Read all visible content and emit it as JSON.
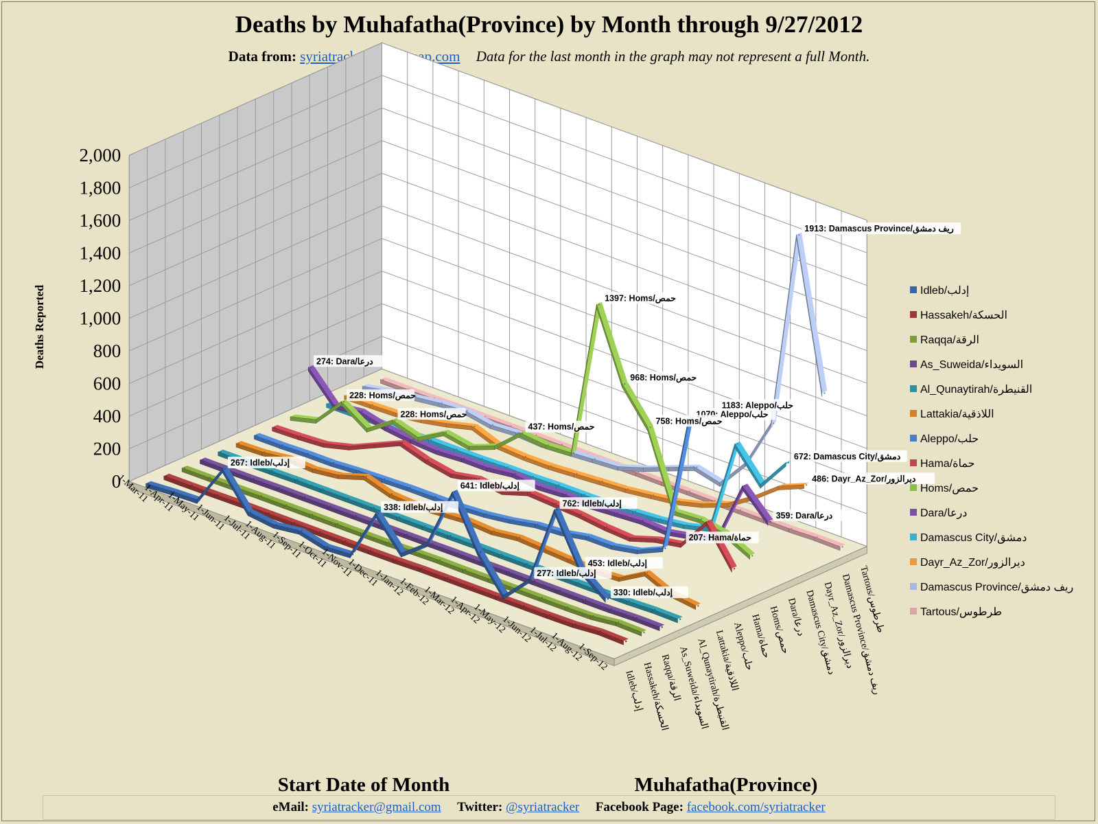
{
  "title": "Deaths by Muhafatha(Province) by Month through 9/27/2012",
  "subtitle": {
    "source_label": "Data from:",
    "source_link": "syriatracker.crowdmap.com",
    "note": "Data for the last month  in the graph may not represent a full Month."
  },
  "footer": {
    "email_label": "eMail:",
    "email": "syriatracker@gmail.com",
    "twitter_label": "Twitter:",
    "twitter": "@syriatracker",
    "facebook_label": "Facebook Page:",
    "facebook": "facebook.com/syriatracker"
  },
  "colors": {
    "background": "#e8e3c6",
    "wall_back": "#ffffff",
    "wall_side": "#c9c9c9",
    "floor": "#ece9cf",
    "link": "#1f5fbf"
  },
  "chart_data": {
    "type": "line",
    "style": "3d",
    "title": "Deaths by Muhafatha(Province) by Month through 9/27/2012",
    "ylabel": "Deaths Reported",
    "xlabel": "Start Date of Month",
    "zlabel": "Muhafatha(Province)",
    "ylim": [
      0,
      2000
    ],
    "yticks": [
      "0",
      "200",
      "400",
      "600",
      "800",
      "1,000",
      "1,200",
      "1,400",
      "1,600",
      "1,800",
      "2,000"
    ],
    "grid": true,
    "legend_position": "right",
    "categories": [
      "1-Mar-11",
      "1-Apr-11",
      "1-May-11",
      "1-Jun-11",
      "1-Jul-11",
      "1-Aug-11",
      "1-Sep-11",
      "1-Oct-11",
      "1-Nov-11",
      "1-Dec-11",
      "1-Jan-12",
      "1-Feb-12",
      "1-Mar-12",
      "1-Apr-12",
      "1-May-12",
      "1-Jun-12",
      "1-Jul-12",
      "1-Aug-12",
      "1-Sep-12"
    ],
    "series": [
      {
        "name": "Idleb/إدلب",
        "color": "#3a66a8",
        "values": [
          5,
          15,
          20,
          267,
          60,
          40,
          60,
          20,
          30,
          338,
          150,
          270,
          641,
          330,
          120,
          277,
          762,
          453,
          330
        ]
      },
      {
        "name": "Hassakeh/الحسكة",
        "color": "#a03a3a",
        "values": [
          2,
          2,
          3,
          5,
          5,
          5,
          5,
          5,
          5,
          6,
          10,
          10,
          10,
          10,
          10,
          10,
          12,
          25,
          20
        ]
      },
      {
        "name": "Raqqa/الرقة",
        "color": "#7e9c3c",
        "values": [
          2,
          2,
          3,
          5,
          5,
          5,
          5,
          5,
          5,
          10,
          12,
          10,
          10,
          10,
          10,
          10,
          12,
          30,
          25
        ]
      },
      {
        "name": "As_Suweida/السويداء",
        "color": "#6a4a8c",
        "values": [
          2,
          2,
          3,
          5,
          5,
          5,
          5,
          5,
          5,
          5,
          6,
          5,
          5,
          5,
          5,
          5,
          5,
          10,
          8
        ]
      },
      {
        "name": "Al_Qunaytirah/القنيطرة",
        "color": "#2e8fa0",
        "values": [
          2,
          2,
          3,
          5,
          5,
          5,
          5,
          5,
          5,
          5,
          6,
          5,
          5,
          5,
          5,
          5,
          5,
          10,
          8
        ]
      },
      {
        "name": "Lattakia/اللاذقية",
        "color": "#d07f2a",
        "values": [
          5,
          10,
          30,
          20,
          40,
          90,
          40,
          30,
          40,
          50,
          40,
          60,
          50,
          40,
          30,
          40,
          130,
          60,
          40
        ]
      },
      {
        "name": "Aleppo/حلب",
        "color": "#4a7fc8",
        "values": [
          5,
          5,
          10,
          10,
          20,
          25,
          30,
          30,
          30,
          40,
          60,
          90,
          100,
          130,
          130,
          160,
          230,
          1070,
          1183
        ]
      },
      {
        "name": "Hama/حماة",
        "color": "#c0464f",
        "values": [
          5,
          10,
          20,
          60,
          130,
          200,
          150,
          120,
          150,
          130,
          180,
          170,
          160,
          140,
          130,
          180,
          207,
          400,
          170
        ]
      },
      {
        "name": "Homs/حمص",
        "color": "#8dbb4c",
        "values": [
          20,
          60,
          228,
          120,
          228,
          180,
          270,
          240,
          300,
          437,
          420,
          430,
          1397,
          968,
          758,
          300,
          310,
          280,
          200
        ]
      },
      {
        "name": "Dara/درعا",
        "color": "#7c4fa5",
        "values": [
          274,
          100,
          120,
          80,
          60,
          50,
          60,
          60,
          80,
          60,
          70,
          60,
          70,
          80,
          70,
          100,
          150,
          520,
          359
        ]
      },
      {
        "name": "Damascus City/دمشق",
        "color": "#3eaed0",
        "values": [
          2,
          3,
          5,
          5,
          10,
          10,
          10,
          15,
          15,
          20,
          20,
          20,
          30,
          40,
          60,
          100,
          672,
          480,
          672
        ]
      },
      {
        "name": "Dayr_Az_Zor/ديرالزور",
        "color": "#f0963c",
        "values": [
          2,
          5,
          10,
          30,
          60,
          100,
          40,
          30,
          30,
          40,
          50,
          60,
          80,
          100,
          140,
          200,
          300,
          420,
          486
        ]
      },
      {
        "name": "Damascus Province/ريف دمشق",
        "color": "#a9b9dc",
        "values": [
          10,
          40,
          60,
          80,
          90,
          60,
          70,
          60,
          70,
          80,
          90,
          140,
          200,
          260,
          220,
          400,
          700,
          1913,
          1000
        ]
      },
      {
        "name": "Tartous/طرطوس",
        "color": "#d9a6a8",
        "values": [
          2,
          2,
          3,
          5,
          5,
          5,
          5,
          5,
          5,
          5,
          6,
          5,
          5,
          5,
          5,
          5,
          5,
          10,
          8
        ]
      }
    ],
    "data_labels": [
      {
        "series": "Idleb/إدلب",
        "category": "1-Jun-11",
        "text": "267: Idleb/إدلب"
      },
      {
        "series": "Idleb/إدلب",
        "category": "1-Dec-11",
        "text": "338: Idleb/إدلب"
      },
      {
        "series": "Idleb/إدلب",
        "category": "1-Mar-12",
        "text": "641: Idleb/إدلب"
      },
      {
        "series": "Idleb/إدلب",
        "category": "1-Jun-12",
        "text": "277: Idleb/إدلب"
      },
      {
        "series": "Idleb/إدلب",
        "category": "1-Jul-12",
        "text": "762: Idleb/إدلب"
      },
      {
        "series": "Idleb/إدلب",
        "category": "1-Aug-12",
        "text": "453: Idleb/إدلب"
      },
      {
        "series": "Idleb/إدلب",
        "category": "1-Sep-12",
        "text": "330: Idleb/إدلب"
      },
      {
        "series": "Hama/حماة",
        "category": "1-Jul-12",
        "text": "207: Hama/حماة"
      },
      {
        "series": "Aleppo/حلب",
        "category": "1-Aug-12",
        "text": "1070: Aleppo/حلب"
      },
      {
        "series": "Aleppo/حلب",
        "category": "1-Sep-12",
        "text": "1183: Aleppo/حلب"
      },
      {
        "series": "Homs/حمص",
        "category": "1-May-11",
        "text": "228: Homs/حمص"
      },
      {
        "series": "Homs/حمص",
        "category": "1-Jul-11",
        "text": "228: Homs/حمص"
      },
      {
        "series": "Homs/حمص",
        "category": "1-Dec-11",
        "text": "437: Homs/حمص"
      },
      {
        "series": "Homs/حمص",
        "category": "1-Mar-12",
        "text": "1397: Homs/حمص"
      },
      {
        "series": "Homs/حمص",
        "category": "1-Apr-12",
        "text": "968: Homs/حمص"
      },
      {
        "series": "Homs/حمص",
        "category": "1-May-12",
        "text": "758: Homs/حمص"
      },
      {
        "series": "Dara/درعا",
        "category": "1-Mar-11",
        "text": "274: Dara/درعا"
      },
      {
        "series": "Dara/درعا",
        "category": "1-Sep-12",
        "text": "359: Dara/درعا"
      },
      {
        "series": "Damascus City/دمشق",
        "category": "1-Sep-12",
        "text": "672: Damascus City/دمشق"
      },
      {
        "series": "Dayr_Az_Zor/ديرالزور",
        "category": "1-Sep-12",
        "text": "486: Dayr_Az_Zor/ديرالزور"
      },
      {
        "series": "Damascus Province/ريف دمشق",
        "category": "1-Aug-12",
        "text": "1913: Damascus Province/ريف دمشق"
      }
    ]
  }
}
